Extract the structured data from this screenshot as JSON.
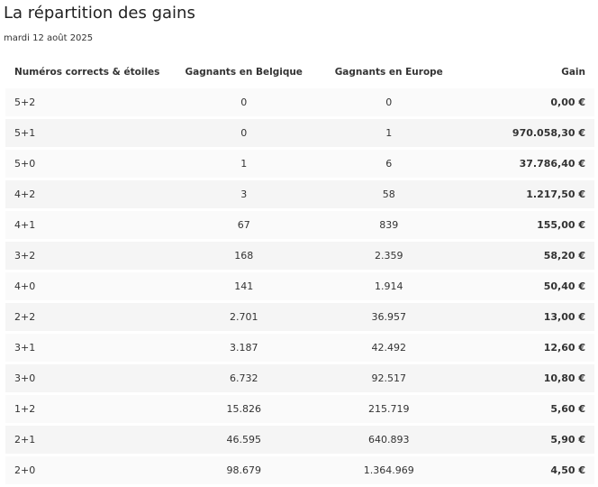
{
  "header": {
    "title": "La répartition des gains",
    "date": "mardi 12 août 2025"
  },
  "table": {
    "columns": [
      "Numéros corrects & étoiles",
      "Gagnants en Belgique",
      "Gagnants en Europe",
      "Gain"
    ],
    "rows": [
      [
        "5+2",
        "0",
        "0",
        "0,00 €"
      ],
      [
        "5+1",
        "0",
        "1",
        "970.058,30 €"
      ],
      [
        "5+0",
        "1",
        "6",
        "37.786,40 €"
      ],
      [
        "4+2",
        "3",
        "58",
        "1.217,50 €"
      ],
      [
        "4+1",
        "67",
        "839",
        "155,00 €"
      ],
      [
        "3+2",
        "168",
        "2.359",
        "58,20 €"
      ],
      [
        "4+0",
        "141",
        "1.914",
        "50,40 €"
      ],
      [
        "2+2",
        "2.701",
        "36.957",
        "13,00 €"
      ],
      [
        "3+1",
        "3.187",
        "42.492",
        "12,60 €"
      ],
      [
        "3+0",
        "6.732",
        "92.517",
        "10,80 €"
      ],
      [
        "1+2",
        "15.826",
        "215.719",
        "5,60 €"
      ],
      [
        "2+1",
        "46.595",
        "640.893",
        "5,90 €"
      ],
      [
        "2+0",
        "98.679",
        "1.364.969",
        "4,50 €"
      ]
    ]
  }
}
